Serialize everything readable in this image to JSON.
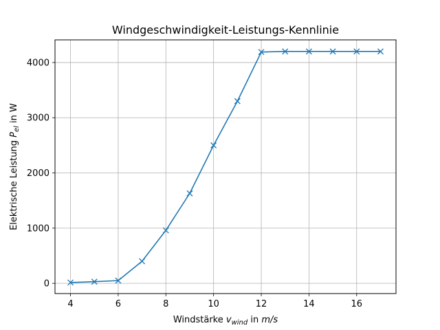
{
  "chart_data": {
    "type": "line",
    "title": "Windgeschwindigkeit-Leistungs-Kennlinie",
    "xlabel_parts": [
      "Windstärke ",
      "v",
      "wind",
      " in ",
      "m/s"
    ],
    "ylabel_parts": [
      "Elektrische Leistung ",
      "P",
      "el",
      " in W"
    ],
    "x": [
      4,
      5,
      6,
      7,
      8,
      9,
      10,
      11,
      12,
      13,
      14,
      15,
      16,
      17
    ],
    "series": [
      {
        "values": [
          15,
          30,
          50,
          400,
          960,
          1630,
          2500,
          3300,
          4190,
          4200,
          4200,
          4200,
          4200,
          4200
        ],
        "color": "#1f77b4",
        "marker": "x"
      }
    ],
    "xlim": [
      3.35,
      17.65
    ],
    "ylim": [
      -185,
      4410
    ],
    "xticks": [
      4,
      6,
      8,
      10,
      12,
      14,
      16
    ],
    "yticks": [
      0,
      1000,
      2000,
      3000,
      4000
    ],
    "grid": true
  }
}
